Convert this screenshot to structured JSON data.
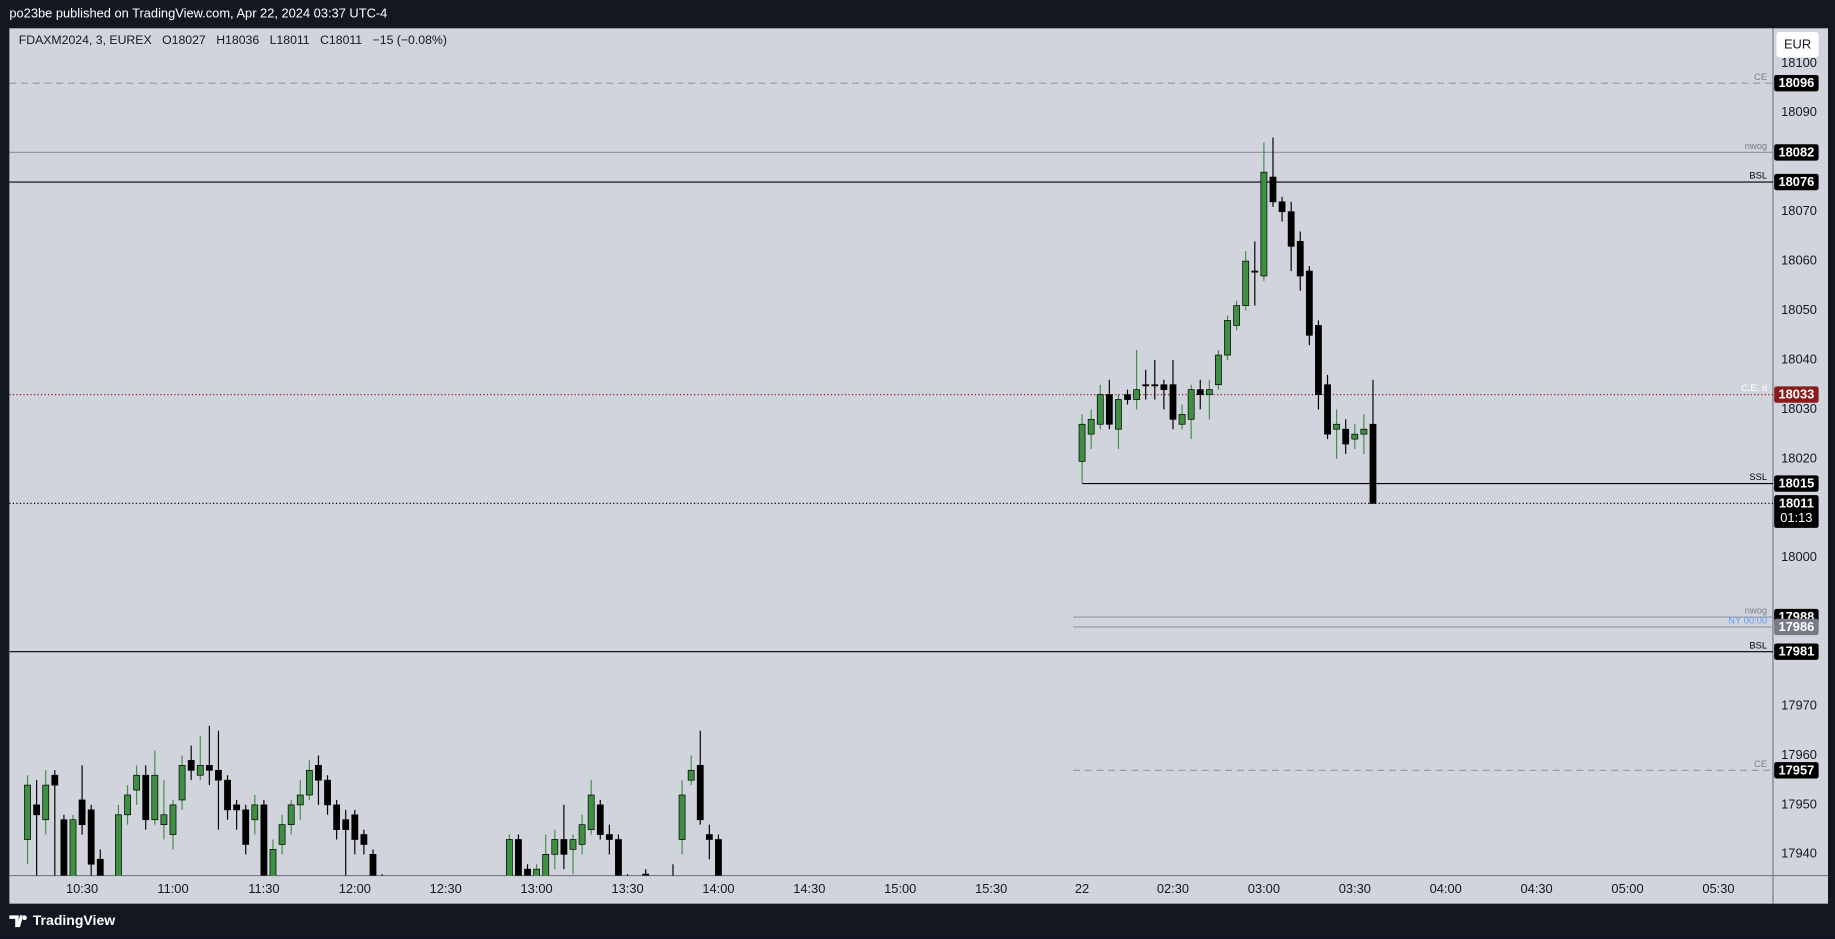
{
  "page": {
    "publisher": "po23be published on TradingView.com, Apr 22, 2024 03:37 UTC-4",
    "legend": [
      "FDAXM2024, 3, EUREX",
      "O18027",
      "H18036",
      "L18011",
      "C18011",
      "−15 (−0.08%)"
    ],
    "currency": "EUR",
    "footer": "TradingView"
  },
  "chart_data": {
    "type": "candlestick",
    "up_color": "#3f8f43",
    "down_color": "#000000",
    "ylim": [
      17935.7,
      18107.1
    ],
    "yticks": [
      18100,
      18090,
      18070,
      18060,
      18050,
      18040,
      18030,
      18020,
      18000,
      17970,
      17960,
      17950,
      17940
    ],
    "xlim": [
      "10:06",
      "05:48"
    ],
    "xticks": [
      "10:30",
      "11:00",
      "11:30",
      "12:00",
      "12:30",
      "13:00",
      "13:30",
      "14:00",
      "14:30",
      "15:00",
      "15:30",
      {
        "value": "02:00",
        "label": "22"
      },
      "02:30",
      "03:00",
      "03:30",
      "04:00",
      "04:30",
      "05:00",
      "05:30"
    ],
    "candles": [
      {
        "t": "10:12",
        "o": 17943,
        "h": 17956,
        "l": 17938,
        "c": 17954
      },
      {
        "t": "10:15",
        "o": 17950,
        "h": 17955,
        "l": 17935,
        "c": 17948
      },
      {
        "t": "10:18",
        "o": 17947,
        "h": 17957,
        "l": 17944,
        "c": 17954
      },
      {
        "t": "10:21",
        "o": 17956,
        "h": 17957,
        "l": 17935,
        "c": 17954
      },
      {
        "t": "10:24",
        "o": 17947,
        "h": 17948,
        "l": 17925,
        "c": 17930
      },
      {
        "t": "10:27",
        "o": 17930,
        "h": 17948,
        "l": 17928,
        "c": 17947
      },
      {
        "t": "10:30",
        "o": 17951,
        "h": 17958,
        "l": 17944,
        "c": 17946
      },
      {
        "t": "10:33",
        "o": 17949,
        "h": 17950,
        "l": 17934,
        "c": 17938
      },
      {
        "t": "10:36",
        "o": 17939,
        "h": 17941,
        "l": 17930,
        "c": 17933
      },
      {
        "t": "10:42",
        "o": 17930,
        "h": 17950,
        "l": 17928,
        "c": 17948
      },
      {
        "t": "10:45",
        "o": 17948,
        "h": 17954,
        "l": 17946,
        "c": 17952
      },
      {
        "t": "10:48",
        "o": 17953,
        "h": 17958,
        "l": 17950,
        "c": 17956
      },
      {
        "t": "10:51",
        "o": 17956,
        "h": 17958,
        "l": 17945,
        "c": 17947
      },
      {
        "t": "10:54",
        "o": 17947,
        "h": 17961,
        "l": 17946,
        "c": 17956
      },
      {
        "t": "10:57",
        "o": 17946,
        "h": 17955,
        "l": 17943,
        "c": 17948
      },
      {
        "t": "11:00",
        "o": 17944,
        "h": 17951,
        "l": 17941,
        "c": 17950
      },
      {
        "t": "11:03",
        "o": 17951,
        "h": 17960,
        "l": 17949,
        "c": 17958
      },
      {
        "t": "11:06",
        "o": 17959,
        "h": 17962,
        "l": 17955,
        "c": 17957
      },
      {
        "t": "11:09",
        "o": 17956,
        "h": 17964,
        "l": 17955,
        "c": 17958
      },
      {
        "t": "11:12",
        "o": 17958,
        "h": 17966,
        "l": 17954,
        "c": 17957
      },
      {
        "t": "11:15",
        "o": 17957,
        "h": 17965,
        "l": 17945,
        "c": 17955
      },
      {
        "t": "11:18",
        "o": 17955,
        "h": 17956,
        "l": 17947,
        "c": 17949
      },
      {
        "t": "11:21",
        "o": 17950,
        "h": 17951,
        "l": 17945,
        "c": 17949
      },
      {
        "t": "11:24",
        "o": 17949,
        "h": 17950,
        "l": 17940,
        "c": 17942
      },
      {
        "t": "11:27",
        "o": 17947,
        "h": 17952,
        "l": 17944,
        "c": 17950
      },
      {
        "t": "11:30",
        "o": 17950,
        "h": 17951,
        "l": 17930,
        "c": 17935
      },
      {
        "t": "11:33",
        "o": 17935,
        "h": 17943,
        "l": 17932,
        "c": 17941
      },
      {
        "t": "11:36",
        "o": 17942,
        "h": 17948,
        "l": 17940,
        "c": 17946
      },
      {
        "t": "11:39",
        "o": 17946,
        "h": 17951,
        "l": 17944,
        "c": 17950
      },
      {
        "t": "11:42",
        "o": 17950,
        "h": 17955,
        "l": 17947,
        "c": 17952
      },
      {
        "t": "11:45",
        "o": 17952,
        "h": 17959,
        "l": 17951,
        "c": 17957
      },
      {
        "t": "11:48",
        "o": 17958,
        "h": 17960,
        "l": 17950,
        "c": 17955
      },
      {
        "t": "11:51",
        "o": 17955,
        "h": 17956,
        "l": 17948,
        "c": 17950
      },
      {
        "t": "11:54",
        "o": 17950,
        "h": 17951,
        "l": 17943,
        "c": 17945
      },
      {
        "t": "11:57",
        "o": 17947,
        "h": 17949,
        "l": 17935,
        "c": 17945
      },
      {
        "t": "12:00",
        "o": 17948,
        "h": 17949,
        "l": 17940,
        "c": 17943
      },
      {
        "t": "12:03",
        "o": 17944,
        "h": 17945,
        "l": 17940,
        "c": 17942
      },
      {
        "t": "12:06",
        "o": 17940,
        "h": 17941,
        "l": 17930,
        "c": 17935
      },
      {
        "t": "12:09",
        "o": 17935,
        "h": 17936,
        "l": 17930,
        "c": 17933
      },
      {
        "t": "12:51",
        "o": 17935,
        "h": 17944,
        "l": 17930,
        "c": 17943
      },
      {
        "t": "12:54",
        "o": 17943,
        "h": 17944,
        "l": 17930,
        "c": 17935
      },
      {
        "t": "12:57",
        "o": 17937,
        "h": 17938,
        "l": 17930,
        "c": 17934
      },
      {
        "t": "13:00",
        "o": 17934,
        "h": 17938,
        "l": 17930,
        "c": 17937
      },
      {
        "t": "13:03",
        "o": 17935,
        "h": 17944,
        "l": 17932,
        "c": 17940
      },
      {
        "t": "13:06",
        "o": 17940,
        "h": 17945,
        "l": 17937,
        "c": 17943
      },
      {
        "t": "13:09",
        "o": 17943,
        "h": 17950,
        "l": 17937,
        "c": 17940
      },
      {
        "t": "13:12",
        "o": 17941,
        "h": 17944,
        "l": 17936,
        "c": 17943
      },
      {
        "t": "13:15",
        "o": 17942,
        "h": 17948,
        "l": 17940,
        "c": 17946
      },
      {
        "t": "13:18",
        "o": 17945,
        "h": 17955,
        "l": 17944,
        "c": 17952
      },
      {
        "t": "13:21",
        "o": 17950,
        "h": 17951,
        "l": 17943,
        "c": 17944
      },
      {
        "t": "13:24",
        "o": 17944,
        "h": 17946,
        "l": 17940,
        "c": 17943
      },
      {
        "t": "13:27",
        "o": 17943,
        "h": 17944,
        "l": 17930,
        "c": 17935
      },
      {
        "t": "13:30",
        "o": 17935,
        "h": 17936,
        "l": 17930,
        "c": 17935
      },
      {
        "t": "13:36",
        "o": 17936,
        "h": 17937,
        "l": 17930,
        "c": 17936
      },
      {
        "t": "13:45",
        "o": 17935,
        "h": 17938,
        "l": 17930,
        "c": 17935
      },
      {
        "t": "13:48",
        "o": 17943,
        "h": 17955,
        "l": 17940,
        "c": 17952
      },
      {
        "t": "13:51",
        "o": 17955,
        "h": 17960,
        "l": 17954,
        "c": 17957
      },
      {
        "t": "13:54",
        "o": 17958,
        "h": 17965,
        "l": 17946,
        "c": 17947
      },
      {
        "t": "13:57",
        "o": 17944,
        "h": 17946,
        "l": 17939,
        "c": 17943
      },
      {
        "t": "14:00",
        "o": 17943,
        "h": 17944,
        "l": 17930,
        "c": 17935
      },
      {
        "t": "02:00",
        "o": 18019.5,
        "h": 18029,
        "l": 18015,
        "c": 18027
      },
      {
        "t": "02:03",
        "o": 18025,
        "h": 18030,
        "l": 18022,
        "c": 18028
      },
      {
        "t": "02:06",
        "o": 18027,
        "h": 18035,
        "l": 18026,
        "c": 18033
      },
      {
        "t": "02:09",
        "o": 18033,
        "h": 18036,
        "l": 18026,
        "c": 18027
      },
      {
        "t": "02:12",
        "o": 18026,
        "h": 18033,
        "l": 18022,
        "c": 18032
      },
      {
        "t": "02:15",
        "o": 18033,
        "h": 18034,
        "l": 18031,
        "c": 18032
      },
      {
        "t": "02:18",
        "o": 18032,
        "h": 18042,
        "l": 18030,
        "c": 18034
      },
      {
        "t": "02:21",
        "o": 18035,
        "h": 18038,
        "l": 18032,
        "c": 18035
      },
      {
        "t": "02:24",
        "o": 18035,
        "h": 18040,
        "l": 18032,
        "c": 18035
      },
      {
        "t": "02:27",
        "o": 18035,
        "h": 18036,
        "l": 18030,
        "c": 18034
      },
      {
        "t": "02:30",
        "o": 18035,
        "h": 18040,
        "l": 18026,
        "c": 18028
      },
      {
        "t": "02:33",
        "o": 18027,
        "h": 18031,
        "l": 18026,
        "c": 18029
      },
      {
        "t": "02:36",
        "o": 18028,
        "h": 18035,
        "l": 18024,
        "c": 18034
      },
      {
        "t": "02:39",
        "o": 18034,
        "h": 18036,
        "l": 18030,
        "c": 18033
      },
      {
        "t": "02:42",
        "o": 18033,
        "h": 18036,
        "l": 18028,
        "c": 18034
      },
      {
        "t": "02:45",
        "o": 18035,
        "h": 18042,
        "l": 18034,
        "c": 18041
      },
      {
        "t": "02:48",
        "o": 18041,
        "h": 18049,
        "l": 18040,
        "c": 18048
      },
      {
        "t": "02:51",
        "o": 18047,
        "h": 18052,
        "l": 18046,
        "c": 18051
      },
      {
        "t": "02:54",
        "o": 18051,
        "h": 18062,
        "l": 18050,
        "c": 18060
      },
      {
        "t": "02:57",
        "o": 18058,
        "h": 18064,
        "l": 18051,
        "c": 18058
      },
      {
        "t": "03:00",
        "o": 18057,
        "h": 18084,
        "l": 18056,
        "c": 18078
      },
      {
        "t": "03:03",
        "o": 18077,
        "h": 18085,
        "l": 18071,
        "c": 18072
      },
      {
        "t": "03:06",
        "o": 18072,
        "h": 18073,
        "l": 18068,
        "c": 18070
      },
      {
        "t": "03:09",
        "o": 18070,
        "h": 18072,
        "l": 18058,
        "c": 18063
      },
      {
        "t": "03:12",
        "o": 18064,
        "h": 18066,
        "l": 18054,
        "c": 18057
      },
      {
        "t": "03:15",
        "o": 18058,
        "h": 18059,
        "l": 18043,
        "c": 18045
      },
      {
        "t": "03:18",
        "o": 18047,
        "h": 18048,
        "l": 18030,
        "c": 18033
      },
      {
        "t": "03:21",
        "o": 18035,
        "h": 18037,
        "l": 18024,
        "c": 18025
      },
      {
        "t": "03:24",
        "o": 18026,
        "h": 18030,
        "l": 18020,
        "c": 18027
      },
      {
        "t": "03:27",
        "o": 18026,
        "h": 18028,
        "l": 18021,
        "c": 18023
      },
      {
        "t": "03:30",
        "o": 18024,
        "h": 18027,
        "l": 18022,
        "c": 18025
      },
      {
        "t": "03:33",
        "o": 18025,
        "h": 18029,
        "l": 18021,
        "c": 18026
      },
      {
        "t": "03:36",
        "o": 18027,
        "h": 18036,
        "l": 18011,
        "c": 18011
      }
    ],
    "levels": [
      {
        "label": "CE",
        "value": 18096,
        "dash": "6 4",
        "color": "#9598a1",
        "label_color": "#787b86",
        "box": "#000000"
      },
      {
        "label": "nwog",
        "value": 18082,
        "dash": "",
        "color": "#9598a1",
        "label_color": "#787b86",
        "box": "#000000"
      },
      {
        "label": "BSL",
        "value": 18076,
        "dash": "",
        "color": "#000000",
        "label_color": "#000000",
        "box": "#000000"
      },
      {
        "label": "C.E. d",
        "value": 18033,
        "dash": "1 2",
        "color": "#8b1a1a",
        "label_color": "#ffffff",
        "box": "#8b1a1a"
      },
      {
        "label": "SSL",
        "value": 18015,
        "dash": "",
        "color": "#000000",
        "label_color": "#000000",
        "box": "#000000",
        "start": "02:00"
      },
      {
        "label": "nwog",
        "value": 17988,
        "dash": "",
        "color": "#9598a1",
        "label_color": "#787b86",
        "box": "#000000",
        "start": "01:57"
      },
      {
        "label": "NY 00:00",
        "value": 17986,
        "dash": "",
        "color": "#9598a1",
        "label_color": "#5b9cf6",
        "box": "#787b86",
        "start": "01:57"
      },
      {
        "label": "BSL",
        "value": 17981,
        "dash": "",
        "color": "#000000",
        "label_color": "#000000",
        "box": "#000000"
      },
      {
        "label": "CE",
        "value": 17957,
        "dash": "6 4",
        "color": "#9598a1",
        "label_color": "#787b86",
        "box": "#000000",
        "start": "01:57"
      }
    ],
    "last_price": {
      "value": 18011,
      "countdown": "01:13",
      "color": "#000000"
    }
  }
}
